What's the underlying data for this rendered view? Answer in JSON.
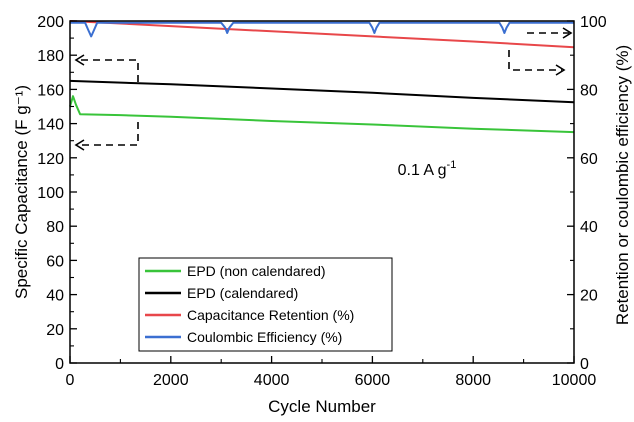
{
  "chart_data": {
    "type": "line",
    "title": "",
    "xlabel": "Cycle Number",
    "ylabel": "Specific Capacitance (F g⁻¹)",
    "y2label": "Retention or coulombic efficiency (%)",
    "xlim": [
      0,
      10000
    ],
    "ylim": [
      0,
      200
    ],
    "y2lim": [
      0,
      100
    ],
    "x_ticks": [
      "0",
      "2000",
      "4000",
      "6000",
      "8000",
      "10000"
    ],
    "y_ticks": [
      "0",
      "20",
      "40",
      "60",
      "80",
      "100",
      "120",
      "140",
      "160",
      "180",
      "200"
    ],
    "y2_ticks": [
      "0",
      "20",
      "40",
      "60",
      "80",
      "100"
    ],
    "grid": false,
    "legend_position": "bottom-left",
    "annotation": {
      "text": "0.1 A g",
      "sup": "-1",
      "x": 6500,
      "y": 110
    },
    "series": [
      {
        "name": "EPD (non calendared)",
        "axis": "left",
        "color": "#39c43a",
        "x": [
          0,
          60,
          120,
          200,
          1000,
          2000,
          4000,
          6000,
          8000,
          10000
        ],
        "y": [
          150,
          156,
          151,
          145.5,
          145,
          144,
          141.5,
          139.5,
          137,
          135
        ]
      },
      {
        "name": "EPD (calendared)",
        "axis": "left",
        "color": "#000000",
        "x": [
          0,
          2000,
          4000,
          6000,
          8000,
          10000
        ],
        "y": [
          165,
          163,
          160.5,
          158,
          155,
          152.5
        ]
      },
      {
        "name": "Capacitance Retention (%)",
        "axis": "right",
        "color": "#e8474a",
        "x": [
          0,
          2000,
          4000,
          6000,
          8000,
          10000
        ],
        "y": [
          100,
          98.5,
          97,
          95.5,
          94,
          92.3
        ]
      },
      {
        "name": "Coulombic Efficiency (%)",
        "axis": "right",
        "color": "#3b6fd1",
        "x": [
          0,
          300,
          360,
          420,
          480,
          540,
          3000,
          3080,
          3120,
          3160,
          3240,
          5940,
          6000,
          6040,
          6080,
          6140,
          8520,
          8580,
          8620,
          8660,
          8720,
          10000
        ],
        "y": [
          99.5,
          99.5,
          97.5,
          95.5,
          97.5,
          99.5,
          99.5,
          98,
          96.5,
          98,
          99.5,
          99.5,
          98,
          96.5,
          98,
          99.5,
          99.5,
          98,
          96.5,
          98,
          99.5,
          99.5
        ]
      }
    ]
  }
}
